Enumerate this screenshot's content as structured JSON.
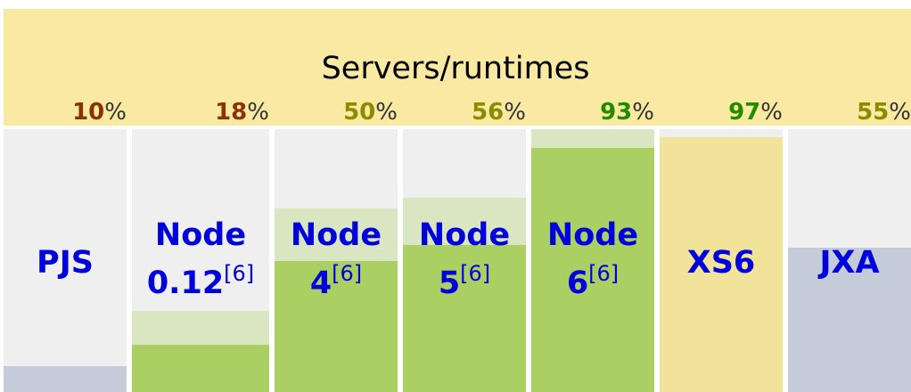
{
  "title": "Servers/runtimes",
  "colors": {
    "header_bg": "#f9e9a2",
    "cell_bg": "#efefef",
    "label_text": "#0000dd",
    "pct_low": "#8b3300",
    "pct_mid": "#8b8b00",
    "pct_high": "#228b00",
    "percent_sign": "#333333",
    "fill_green": "#aad063",
    "fill_green_light": "#dae6c2",
    "fill_slate": "#c4cbd9",
    "fill_yellow": "#f1e49a"
  },
  "columns": [
    {
      "name": "PJS",
      "name_line1": "PJS",
      "name_line2": "",
      "sup": "",
      "pct": "10",
      "pct_sign": "%",
      "pct_level": 0.1,
      "light_level": 0,
      "style": "slate",
      "pct_color": "pct_low"
    },
    {
      "name": "Node",
      "name_line1": "Node",
      "name_line2": "0.12",
      "sup": "[6]",
      "pct": "18",
      "pct_sign": "%",
      "pct_level": 0.18,
      "light_level": 0.31,
      "style": "green",
      "pct_color": "pct_low"
    },
    {
      "name": "Node",
      "name_line1": "Node",
      "name_line2": "4",
      "sup": "[6]",
      "pct": "50",
      "pct_sign": "%",
      "pct_level": 0.5,
      "light_level": 0.7,
      "style": "green",
      "pct_color": "pct_mid"
    },
    {
      "name": "Node",
      "name_line1": "Node",
      "name_line2": "5",
      "sup": "[6]",
      "pct": "56",
      "pct_sign": "%",
      "pct_level": 0.56,
      "light_level": 0.74,
      "style": "green",
      "pct_color": "pct_mid"
    },
    {
      "name": "Node",
      "name_line1": "Node",
      "name_line2": "6",
      "sup": "[6]",
      "pct": "93",
      "pct_sign": "%",
      "pct_level": 0.93,
      "light_level": 1.0,
      "style": "green",
      "pct_color": "pct_high"
    },
    {
      "name": "XS6",
      "name_line1": "XS6",
      "name_line2": "",
      "sup": "",
      "pct": "97",
      "pct_sign": "%",
      "pct_level": 0.97,
      "light_level": 0,
      "style": "yellow",
      "pct_color": "pct_high"
    },
    {
      "name": "JXA",
      "name_line1": "JXA",
      "name_line2": "",
      "sup": "",
      "pct": "55",
      "pct_sign": "%",
      "pct_level": 0.55,
      "light_level": 0,
      "style": "slate",
      "pct_color": "pct_mid"
    }
  ]
}
